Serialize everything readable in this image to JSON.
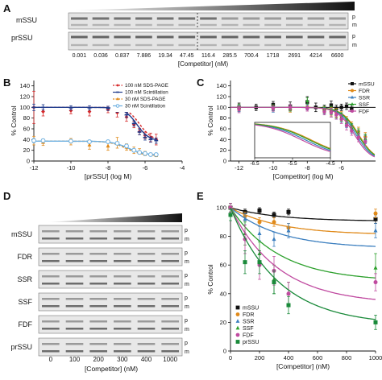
{
  "figure": {
    "panel_letters": [
      "A",
      "B",
      "C",
      "D",
      "E"
    ]
  },
  "panel_a": {
    "row_labels": [
      "mSSU",
      "prSSU"
    ],
    "band_labels": [
      "p",
      "m"
    ],
    "concentrations": [
      "0.001",
      "0.036",
      "0.837",
      "7.886",
      "19.34",
      "47.45",
      "116.4",
      "285.5",
      "700.4",
      "1718",
      "2691",
      "4214",
      "6600"
    ],
    "xlabel": "[Competitor] (nM)"
  },
  "panel_d": {
    "row_labels": [
      "mSSU",
      "FDR",
      "SSR",
      "SSF",
      "FDF",
      "prSSU"
    ],
    "band_labels": [
      "p",
      "m"
    ],
    "concentrations": [
      "0",
      "100",
      "200",
      "300",
      "400",
      "1000"
    ],
    "xlabel": "[Competitor] (nM)"
  },
  "chart_data": [
    {
      "panel": "B",
      "type": "line",
      "xlabel": "[prSSU] (log M)",
      "ylabel": "% Control",
      "xlim": [
        -12,
        -4
      ],
      "ylim": [
        0,
        150
      ],
      "xticks": [
        "-12",
        "-10",
        "-8",
        "-6",
        "-4"
      ],
      "yticks": [
        "0",
        "20",
        "40",
        "60",
        "80",
        "100",
        "120",
        "140"
      ],
      "legend_position": "top-right",
      "series": [
        {
          "name": "100 nM SDS-PAGE",
          "color": "#d62728",
          "marker": "diamond",
          "x": [
            -12,
            -11.5,
            -10,
            -9,
            -8,
            -7.5,
            -7,
            -6.6,
            -6.3,
            -6,
            -5.7,
            -5.4
          ],
          "y": [
            100,
            92,
            94,
            92,
            96,
            90,
            82,
            68,
            55,
            48,
            44,
            40
          ],
          "err": [
            30,
            8,
            6,
            8,
            6,
            8,
            8,
            6,
            6,
            6,
            8,
            10
          ]
        },
        {
          "name": "100 nM Scintillation",
          "color": "#1f3b8c",
          "marker": "line",
          "x": [
            -12,
            -11.5,
            -10,
            -9,
            -8,
            -7.5,
            -7,
            -6.6,
            -6.3,
            -6,
            -5.7,
            -5.4
          ],
          "y": [
            100,
            100,
            99,
            99,
            98,
            95,
            86,
            70,
            54,
            44,
            40,
            38
          ],
          "err": [
            6,
            5,
            4,
            4,
            4,
            4,
            5,
            5,
            5,
            5,
            5,
            5
          ]
        },
        {
          "name": "30 nM SDS-PAGE",
          "color": "#e08a1a",
          "marker": "triangle",
          "x": [
            -12,
            -11.5,
            -10,
            -9,
            -8,
            -7.5,
            -7,
            -6.6,
            -6.3,
            -6,
            -5.7,
            -5.4
          ],
          "y": [
            38,
            35,
            36,
            30,
            28,
            34,
            26,
            20,
            18,
            14,
            12,
            11
          ],
          "err": [
            8,
            6,
            6,
            8,
            8,
            10,
            6,
            6,
            5,
            4,
            3,
            3
          ]
        },
        {
          "name": "30 nM Scintillation",
          "color": "#6aaee0",
          "marker": "circle-open",
          "x": [
            -12,
            -11.5,
            -10,
            -9,
            -8,
            -7.5,
            -7,
            -6.6,
            -6.3,
            -6,
            -5.7,
            -5.4
          ],
          "y": [
            38,
            38,
            37,
            36,
            36,
            33,
            28,
            20,
            16,
            14,
            12,
            12
          ],
          "err": [
            4,
            3,
            3,
            3,
            3,
            3,
            3,
            3,
            3,
            3,
            3,
            3
          ]
        }
      ]
    },
    {
      "panel": "C",
      "type": "line",
      "xlabel": "[Competitor] (log M)",
      "ylabel": "% Control",
      "xlim": [
        -12.5,
        -4
      ],
      "ylim": [
        0,
        150
      ],
      "xticks": [
        "-12",
        "-10",
        "-8",
        "-6"
      ],
      "yticks": [
        "0",
        "20",
        "40",
        "60",
        "80",
        "100",
        "120",
        "140"
      ],
      "legend_position": "top-right",
      "series": [
        {
          "name": "mSSU",
          "color": "#111111",
          "marker": "square",
          "x": [
            -12,
            -11,
            -10,
            -9,
            -8,
            -7.5,
            -7,
            -6.6,
            -6.3,
            -6,
            -5.7,
            -5.4
          ],
          "y": [
            100,
            100,
            105,
            102,
            110,
            100,
            98,
            104,
            98,
            100,
            102,
            98
          ],
          "err": [
            8,
            6,
            6,
            8,
            10,
            8,
            6,
            8,
            6,
            6,
            6,
            6
          ]
        },
        {
          "name": "FDR",
          "color": "#e08a1a",
          "marker": "circle",
          "x": [
            -12,
            -10,
            -9,
            -8,
            -7,
            -6.6,
            -6.3,
            -6,
            -5.7,
            -5.4,
            -5,
            -4.6
          ],
          "y": [
            100,
            98,
            96,
            100,
            95,
            92,
            90,
            84,
            75,
            65,
            55,
            45
          ],
          "err": [
            6,
            5,
            5,
            5,
            6,
            8,
            8,
            8,
            8,
            8,
            8,
            8
          ]
        },
        {
          "name": "SSR",
          "color": "#3c7fbf",
          "marker": "triangle",
          "x": [
            -12,
            -10,
            -9,
            -8,
            -7,
            -6.6,
            -6.3,
            -6,
            -5.7,
            -5.4,
            -5,
            -4.6
          ],
          "y": [
            98,
            96,
            98,
            100,
            94,
            90,
            86,
            80,
            70,
            60,
            48,
            40
          ],
          "err": [
            6,
            5,
            5,
            5,
            6,
            8,
            8,
            8,
            8,
            8,
            8,
            8
          ]
        },
        {
          "name": "SSF",
          "color": "#2ca02c",
          "marker": "triangle",
          "x": [
            -12,
            -10,
            -9,
            -8,
            -7,
            -6.6,
            -6.3,
            -6,
            -5.7,
            -5.4,
            -5,
            -4.6
          ],
          "y": [
            100,
            100,
            98,
            112,
            96,
            94,
            88,
            82,
            72,
            62,
            52,
            42
          ],
          "err": [
            6,
            5,
            5,
            6,
            6,
            8,
            8,
            8,
            8,
            8,
            8,
            8
          ]
        },
        {
          "name": "FDF",
          "color": "#c04aa0",
          "marker": "circle",
          "x": [
            -12,
            -10,
            -9,
            -8,
            -7,
            -6.6,
            -6.3,
            -6,
            -5.7,
            -5.4,
            -5,
            -4.6
          ],
          "y": [
            96,
            98,
            100,
            98,
            92,
            90,
            86,
            78,
            66,
            56,
            44,
            36
          ],
          "err": [
            6,
            5,
            5,
            5,
            6,
            8,
            8,
            8,
            8,
            8,
            8,
            8
          ]
        }
      ],
      "inset": {
        "xticks": [
          "-6.5",
          "-5.5",
          "-4.5"
        ],
        "xlim": [
          -6.5,
          -4.5
        ]
      }
    },
    {
      "panel": "E",
      "type": "scatter",
      "xlabel": "[Competitor] (nM)",
      "ylabel": "% Control",
      "xlim": [
        0,
        1000
      ],
      "ylim": [
        0,
        100
      ],
      "xticks": [
        "0",
        "200",
        "400",
        "600",
        "800",
        "1000"
      ],
      "yticks": [
        "0",
        "20",
        "40",
        "60",
        "80",
        "100"
      ],
      "legend_position": "bottom-left",
      "series": [
        {
          "name": "mSSU",
          "color": "#111111",
          "marker": "square",
          "x": [
            0,
            100,
            200,
            300,
            400,
            1000
          ],
          "y": [
            100,
            97,
            98,
            95,
            97,
            92
          ],
          "err": [
            3,
            2,
            2,
            2,
            2,
            3
          ]
        },
        {
          "name": "FDR",
          "color": "#e08a1a",
          "marker": "circle",
          "x": [
            0,
            100,
            200,
            300,
            400,
            1000
          ],
          "y": [
            100,
            94,
            90,
            90,
            86,
            96
          ],
          "err": [
            3,
            3,
            3,
            3,
            3,
            3
          ]
        },
        {
          "name": "SSR",
          "color": "#3c7fbf",
          "marker": "triangle",
          "x": [
            0,
            100,
            200,
            300,
            400,
            1000
          ],
          "y": [
            100,
            92,
            82,
            78,
            84,
            84
          ],
          "err": [
            3,
            4,
            5,
            5,
            5,
            5
          ]
        },
        {
          "name": "SSF",
          "color": "#2ca02c",
          "marker": "triangle",
          "x": [
            0,
            100,
            200,
            300,
            400,
            1000
          ],
          "y": [
            100,
            82,
            68,
            50,
            40,
            58
          ],
          "err": [
            3,
            8,
            8,
            10,
            8,
            10
          ]
        },
        {
          "name": "FDF",
          "color": "#c04aa0",
          "marker": "circle",
          "x": [
            0,
            100,
            200,
            300,
            400,
            1000
          ],
          "y": [
            100,
            78,
            60,
            56,
            40,
            48
          ],
          "err": [
            3,
            10,
            10,
            10,
            8,
            6
          ]
        },
        {
          "name": "prSSU",
          "color": "#1a8a3a",
          "marker": "square",
          "x": [
            0,
            100,
            200,
            300,
            400,
            1000
          ],
          "y": [
            95,
            62,
            62,
            48,
            32,
            20
          ],
          "err": [
            4,
            8,
            8,
            8,
            6,
            5
          ]
        }
      ],
      "fits": {
        "mSSU": {
          "end": 91
        },
        "FDR": {
          "end": 82
        },
        "SSR": {
          "end": 73
        },
        "SSF": {
          "end": 51
        },
        "FDF": {
          "end": 36
        },
        "prSSU": {
          "end": 22
        }
      }
    }
  ]
}
